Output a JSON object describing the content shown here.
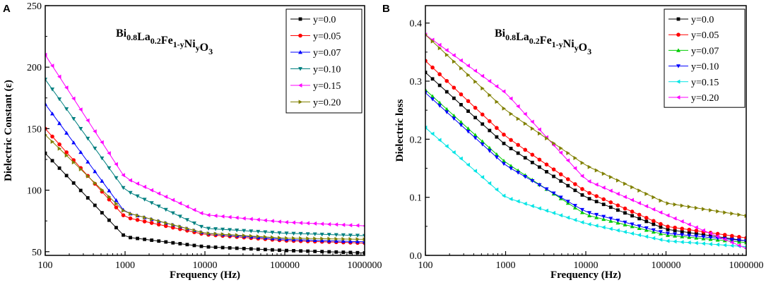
{
  "chart_data": [
    {
      "panel_label": "A",
      "type": "line",
      "title": "",
      "annotation": {
        "base_parts": [
          "Bi",
          "La",
          "Fe",
          "Ni",
          "O"
        ],
        "subscripts": [
          "0.8",
          "0.2",
          "1-y",
          "y",
          "3"
        ]
      },
      "xlabel": "Frequency (Hz)",
      "ylabel": "Dielectric Constant (ε)",
      "xscale": "log",
      "xlim": [
        100,
        1000000
      ],
      "ylim": [
        47,
        250
      ],
      "x_ticks": [
        100,
        1000,
        10000,
        100000,
        1000000
      ],
      "x_tick_labels": [
        "100",
        "1000",
        "10000",
        "100000",
        "1000000"
      ],
      "y_ticks": [
        50,
        100,
        150,
        200,
        250
      ],
      "y_tick_labels": [
        "50",
        "100",
        "150",
        "200",
        "250"
      ],
      "grid": false,
      "legend_position": "top-right",
      "x": [
        100,
        1000,
        10000,
        100000,
        1000000
      ],
      "series": [
        {
          "name": "y=0.0",
          "color": "#000000",
          "marker": "square",
          "values": [
            130,
            62,
            54,
            51,
            49
          ]
        },
        {
          "name": "y=0.05",
          "color": "#ff0000",
          "marker": "circle",
          "values": [
            150,
            78,
            64,
            59,
            57
          ]
        },
        {
          "name": "y=0.07",
          "color": "#0000ff",
          "marker": "triangle-up",
          "values": [
            170,
            82,
            65,
            60,
            58
          ]
        },
        {
          "name": "y=0.10",
          "color": "#008080",
          "marker": "triangle-down",
          "values": [
            190,
            100,
            69,
            65,
            63
          ]
        },
        {
          "name": "y=0.15",
          "color": "#ff00ff",
          "marker": "triangle-left",
          "values": [
            210,
            110,
            80,
            74,
            71
          ]
        },
        {
          "name": "y=0.20",
          "color": "#808000",
          "marker": "triangle-right",
          "values": [
            145,
            82,
            65,
            61,
            60
          ]
        }
      ]
    },
    {
      "panel_label": "B",
      "type": "line",
      "title": "",
      "annotation": {
        "base_parts": [
          "Bi",
          "La",
          "Fe",
          "Ni",
          "O"
        ],
        "subscripts": [
          "0.8",
          "0.2",
          "1-y",
          "y",
          "3"
        ]
      },
      "xlabel": "Frequency (Hz)",
      "ylabel": "Dielectric loss",
      "xscale": "log",
      "xlim": [
        100,
        1000000
      ],
      "ylim": [
        0,
        0.43
      ],
      "x_ticks": [
        100,
        1000,
        10000,
        100000,
        1000000
      ],
      "x_tick_labels": [
        "100",
        "1000",
        "10000",
        "100000",
        "1000000"
      ],
      "y_ticks": [
        0.0,
        0.1,
        0.2,
        0.3,
        0.4
      ],
      "y_tick_labels": [
        "0.0",
        "0.1",
        "0.2",
        "0.3",
        "0.4"
      ],
      "grid": false,
      "legend_position": "top-right",
      "x": [
        100,
        1000,
        10000,
        100000,
        1000000
      ],
      "series": [
        {
          "name": "y=0.0",
          "color": "#000000",
          "marker": "square",
          "values": [
            0.315,
            0.19,
            0.1,
            0.045,
            0.025
          ]
        },
        {
          "name": "y=0.05",
          "color": "#ff0000",
          "marker": "circle",
          "values": [
            0.335,
            0.205,
            0.11,
            0.05,
            0.03
          ]
        },
        {
          "name": "y=0.07",
          "color": "#00cc00",
          "marker": "triangle-up",
          "values": [
            0.285,
            0.16,
            0.07,
            0.035,
            0.022
          ]
        },
        {
          "name": "y=0.10",
          "color": "#0000ff",
          "marker": "triangle-down",
          "values": [
            0.28,
            0.155,
            0.075,
            0.038,
            0.025
          ]
        },
        {
          "name": "y=0.15",
          "color": "#00e5e5",
          "marker": "triangle-left",
          "values": [
            0.22,
            0.1,
            0.055,
            0.025,
            0.015
          ]
        },
        {
          "name": "y=0.20",
          "color": "#ff00ff",
          "marker": "triangle-left",
          "values": [
            0.38,
            0.28,
            0.13,
            0.07,
            0.012
          ]
        },
        {
          "name": "",
          "color": "#808000",
          "marker": "triangle-right",
          "values": [
            0.38,
            0.25,
            0.155,
            0.09,
            0.068
          ]
        }
      ]
    }
  ]
}
